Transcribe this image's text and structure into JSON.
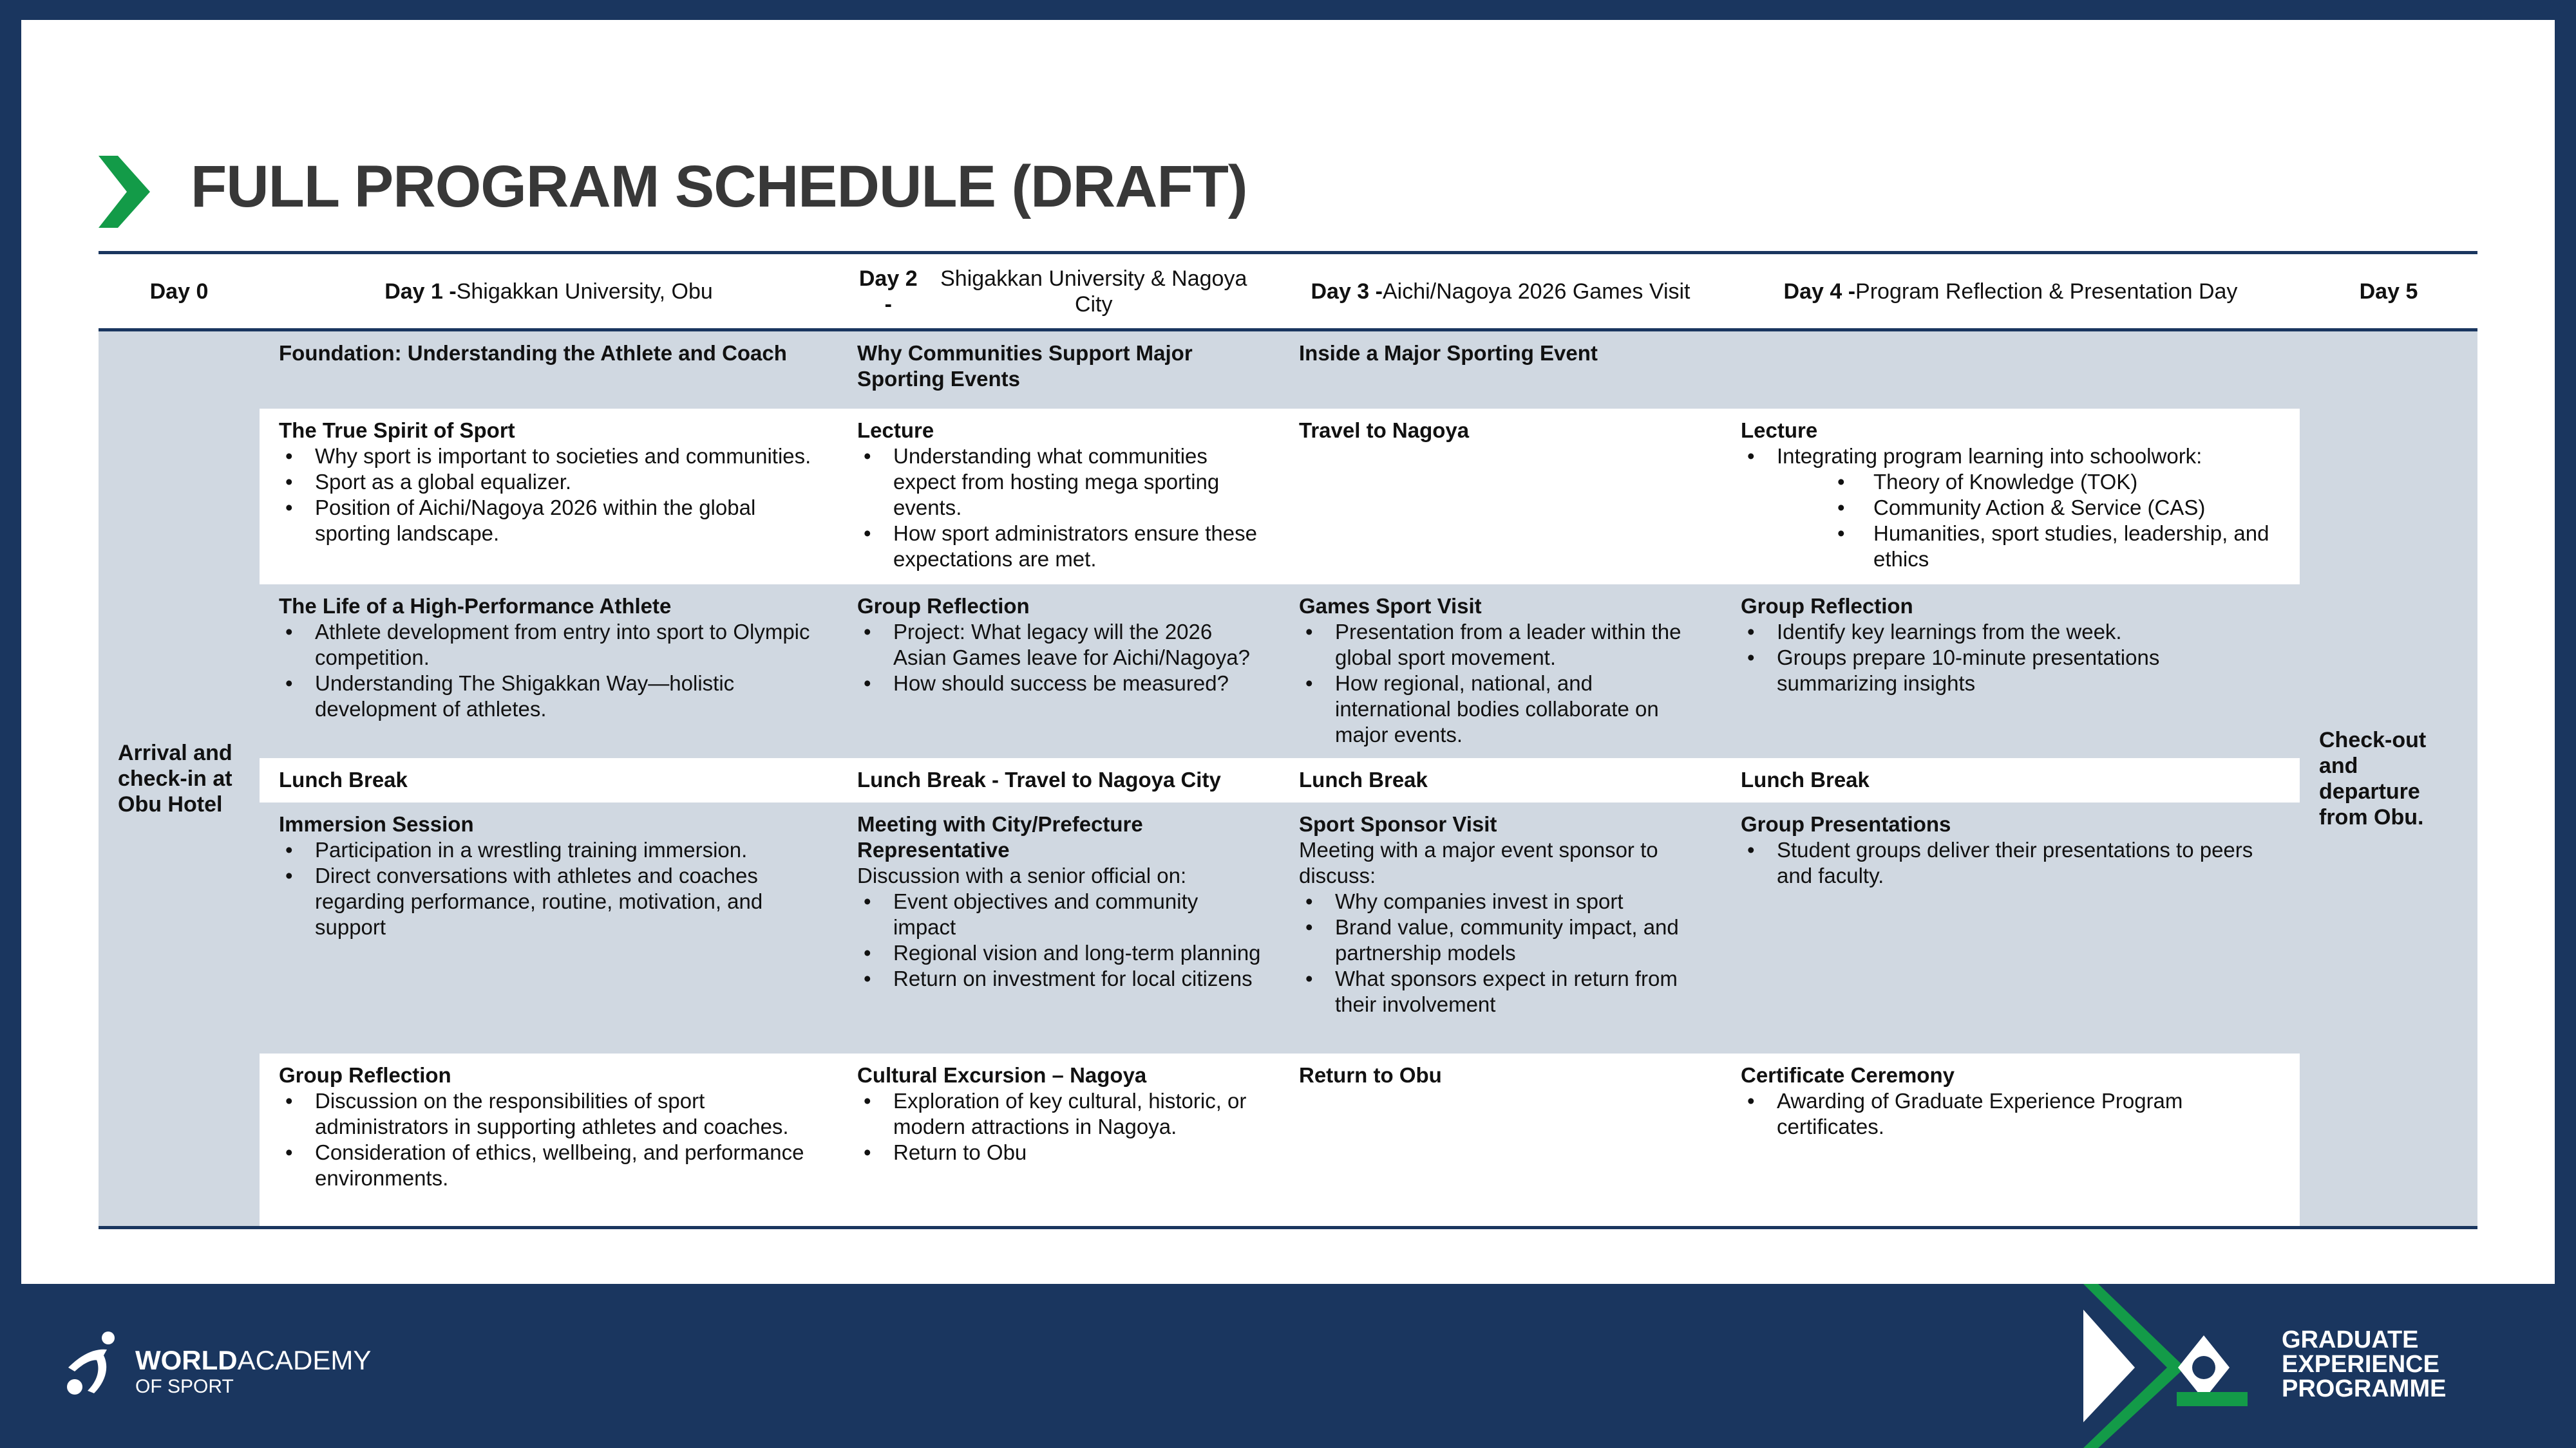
{
  "title": "FULL PROGRAM SCHEDULE (DRAFT)",
  "colors": {
    "navy": "#1a365f",
    "green": "#139b48",
    "row_gray": "#d0d8e1",
    "title_gray": "#383838"
  },
  "header": [
    {
      "day": "Day 0",
      "label": ""
    },
    {
      "day": "Day 1 - ",
      "label": "Shigakkan University, Obu"
    },
    {
      "day": "Day 2 - ",
      "label": "Shigakkan University & Nagoya City"
    },
    {
      "day": "Day 3 - ",
      "label": "Aichi/Nagoya 2026 Games Visit"
    },
    {
      "day": "Day 4 - ",
      "label": "Program Reflection & Presentation Day"
    },
    {
      "day": "Day 5",
      "label": ""
    }
  ],
  "day0": "Arrival and check-in at Obu Hotel",
  "day5": "Check-out and departure from Obu.",
  "rows": [
    [
      {
        "title": "Foundation: Understanding the Athlete and Coach"
      },
      {
        "title": "Why Communities Support Major Sporting Events"
      },
      {
        "title": "Inside a Major Sporting Event"
      },
      {
        "title": ""
      }
    ],
    [
      {
        "title": "The True Spirit of Sport",
        "bullets": [
          {
            "text": "Why sport is important to societies and communities."
          },
          {
            "text": "Sport as a global equalizer."
          },
          {
            "text": "Position of Aichi/Nagoya 2026 within the global sporting landscape."
          }
        ]
      },
      {
        "title": "Lecture",
        "bullets": [
          {
            "text": "Understanding what communities expect from hosting mega sporting events."
          },
          {
            "text": "How sport administrators ensure these expectations are met."
          }
        ]
      },
      {
        "title": "Travel to Nagoya"
      },
      {
        "title": "Lecture",
        "bullets": [
          {
            "text": "Integrating program learning into schoolwork:",
            "sub": [
              "Theory of Knowledge (TOK)",
              "Community Action & Service (CAS)",
              "Humanities, sport studies, leadership, and ethics"
            ]
          }
        ]
      }
    ],
    [
      {
        "title": "The Life of a High-Performance Athlete",
        "bullets": [
          {
            "text": "Athlete development from entry into sport to Olympic competition."
          },
          {
            "text": "Understanding The Shigakkan Way—holistic development of athletes."
          }
        ]
      },
      {
        "title": "Group Reflection",
        "bullets": [
          {
            "text": "Project: What legacy will the 2026 Asian Games leave for Aichi/Nagoya?"
          },
          {
            "text": "How should success be measured?"
          }
        ]
      },
      {
        "title": "Games Sport Visit",
        "bullets": [
          {
            "text": "Presentation from a leader within the global sport movement."
          },
          {
            "text": "How regional, national, and international bodies collaborate on major events."
          }
        ]
      },
      {
        "title": "Group Reflection",
        "bullets": [
          {
            "text": "Identify key learnings from the week."
          },
          {
            "text": "Groups prepare 10-minute presentations summarizing insights"
          }
        ]
      }
    ],
    [
      {
        "title": "Lunch Break"
      },
      {
        "title": "Lunch Break - Travel to Nagoya City"
      },
      {
        "title": "Lunch Break"
      },
      {
        "title": "Lunch Break"
      }
    ],
    [
      {
        "title": "Immersion Session",
        "bullets": [
          {
            "text": "Participation in a wrestling training immersion."
          },
          {
            "text": "Direct conversations with athletes and coaches regarding performance, routine, motivation, and support"
          }
        ]
      },
      {
        "title": "Meeting with City/Prefecture Representative",
        "intro": "Discussion with a senior official on:",
        "bullets": [
          {
            "text": "Event objectives and community impact"
          },
          {
            "text": "Regional vision and long-term planning"
          },
          {
            "text": "Return on investment for local citizens"
          }
        ]
      },
      {
        "title": "Sport Sponsor Visit",
        "intro": "Meeting with a major event sponsor to discuss:",
        "bullets": [
          {
            "text": "Why companies invest in sport"
          },
          {
            "text": "Brand value, community impact, and partnership models"
          },
          {
            "text": "What sponsors expect in return from their involvement"
          }
        ]
      },
      {
        "title": "Group Presentations",
        "bullets": [
          {
            "text": "Student groups deliver their presentations to peers and faculty."
          }
        ]
      }
    ],
    [
      {
        "title": "Group Reflection",
        "bullets": [
          {
            "text": "Discussion on the responsibilities of sport administrators in supporting athletes and coaches."
          },
          {
            "text": "Consideration of ethics, wellbeing, and performance environments."
          }
        ]
      },
      {
        "title": "Cultural Excursion – Nagoya",
        "bullets": [
          {
            "text": "Exploration of key cultural, historic, or modern attractions in Nagoya."
          },
          {
            "text": "Return to Obu"
          }
        ]
      },
      {
        "title": "Return to Obu"
      },
      {
        "title": "Certificate Ceremony",
        "bullets": [
          {
            "text": "Awarding of Graduate Experience Program certificates."
          }
        ]
      }
    ]
  ],
  "row_shading": [
    "gray",
    "white",
    "gray",
    "white",
    "gray",
    "white"
  ],
  "footer": {
    "left_logo": {
      "word1": "WORLD",
      "word2": "ACADEMY",
      "sub": "OF SPORT"
    },
    "right_logo": [
      "GRADUATE",
      "EXPERIENCE",
      "PROGRAMME"
    ]
  }
}
